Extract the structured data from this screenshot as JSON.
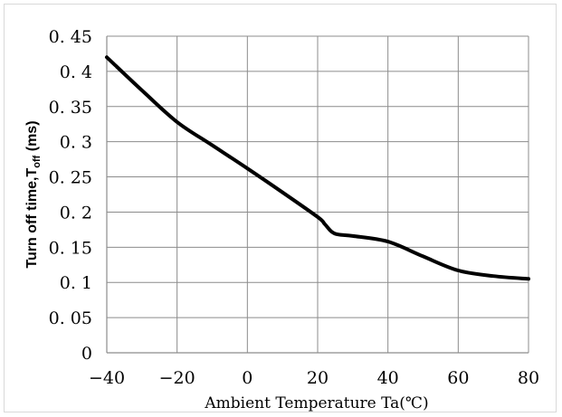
{
  "chart_data": {
    "type": "line",
    "xlabel": "Ambient Temperature Ta(℃)",
    "ylabel": {
      "prefix": "Turn off time,T",
      "subscript": "off",
      "suffix": " (ms)"
    },
    "x_ticks": [
      "-40",
      "-20",
      "0",
      "20",
      "40",
      "60",
      "80"
    ],
    "y_ticks": [
      "0",
      "0.05",
      "0.1",
      "0.15",
      "0.2",
      "0.25",
      "0.3",
      "0.35",
      "0.4",
      "0.45"
    ],
    "xlim": [
      -40,
      80
    ],
    "ylim": [
      0,
      0.45
    ],
    "grid": true,
    "legend": "none",
    "series": [
      {
        "color": "#000000",
        "x": [
          -40,
          -30,
          -20,
          -10,
          0,
          10,
          20,
          22,
          24,
          26,
          30,
          40,
          50,
          60,
          70,
          80
        ],
        "y": [
          0.42,
          0.373,
          0.328,
          0.295,
          0.262,
          0.228,
          0.193,
          0.183,
          0.172,
          0.168,
          0.166,
          0.158,
          0.137,
          0.117,
          0.109,
          0.105
        ]
      }
    ]
  }
}
